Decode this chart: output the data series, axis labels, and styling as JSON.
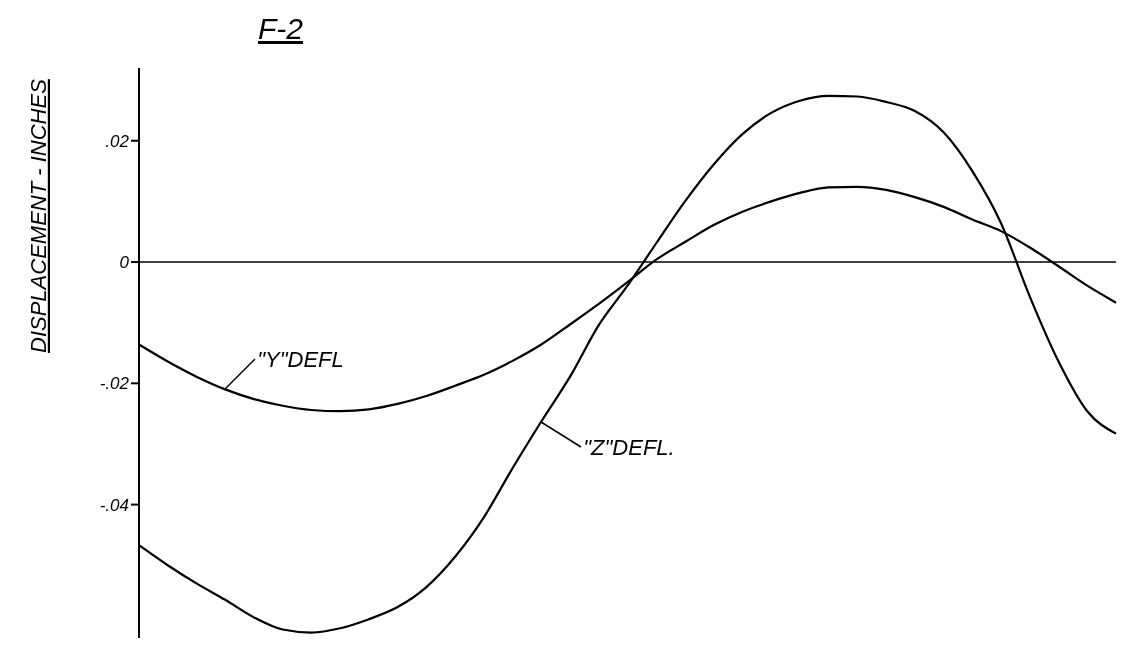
{
  "chart_data": {
    "type": "line",
    "title": "F-2",
    "ylabel": "DISPLACEMENT - INCHES",
    "categories": [
      null,
      null,
      null,
      null,
      null,
      null,
      null,
      null,
      null,
      null,
      null,
      null,
      null,
      null,
      null,
      null,
      null,
      null,
      null,
      null,
      null,
      null,
      null,
      null,
      null,
      null,
      null,
      null,
      null,
      null,
      null,
      null,
      null,
      null,
      null
    ],
    "series": [
      {
        "color": "#000000",
        "values": [
          -0.0136,
          -0.0164,
          -0.0189,
          -0.021,
          -0.0226,
          -0.0237,
          -0.0244,
          -0.0246,
          -0.0243,
          -0.0234,
          -0.0221,
          -0.0204,
          -0.0186,
          -0.0163,
          -0.0136,
          -0.0103,
          -0.0069,
          -0.0033,
          0.0004,
          0.0033,
          0.0061,
          0.0083,
          0.01,
          0.0114,
          0.0123,
          0.0124,
          0.0119,
          0.0107,
          0.0091,
          0.007,
          0.0051,
          0.0024,
          -0.0007,
          -0.0039,
          -0.0067
        ]
      },
      {
        "color": "#000000",
        "values": [
          -0.0467,
          -0.05,
          -0.053,
          -0.0557,
          -0.0586,
          -0.0606,
          -0.0611,
          -0.0604,
          -0.0589,
          -0.0569,
          -0.0536,
          -0.0486,
          -0.0421,
          -0.034,
          -0.0263,
          -0.0189,
          -0.0104,
          -0.0039,
          0.0031,
          0.01,
          0.0161,
          0.0211,
          0.0246,
          0.0266,
          0.0274,
          0.0273,
          0.0264,
          0.0249,
          0.0214,
          0.015,
          0.0064,
          -0.0057,
          -0.0164,
          -0.0246,
          -0.0283
        ]
      }
    ],
    "annotations": [
      "\"Y\"DEFL",
      "\"Z\"DEFL."
    ],
    "ylim": [
      -0.062,
      0.032
    ],
    "yticks": [
      {
        "value": 0.02,
        "label": ".02"
      },
      {
        "value": 0,
        "label": "0"
      },
      {
        "value": -0.02,
        "label": "-.02"
      },
      {
        "value": -0.04,
        "label": "-.04"
      }
    ],
    "ref_lines": [
      {
        "axis": "y",
        "value": 0,
        "color": "#000000"
      }
    ],
    "tick_labels": "y",
    "grid": false,
    "legend": false,
    "marker": "none",
    "line_style": "solid"
  }
}
